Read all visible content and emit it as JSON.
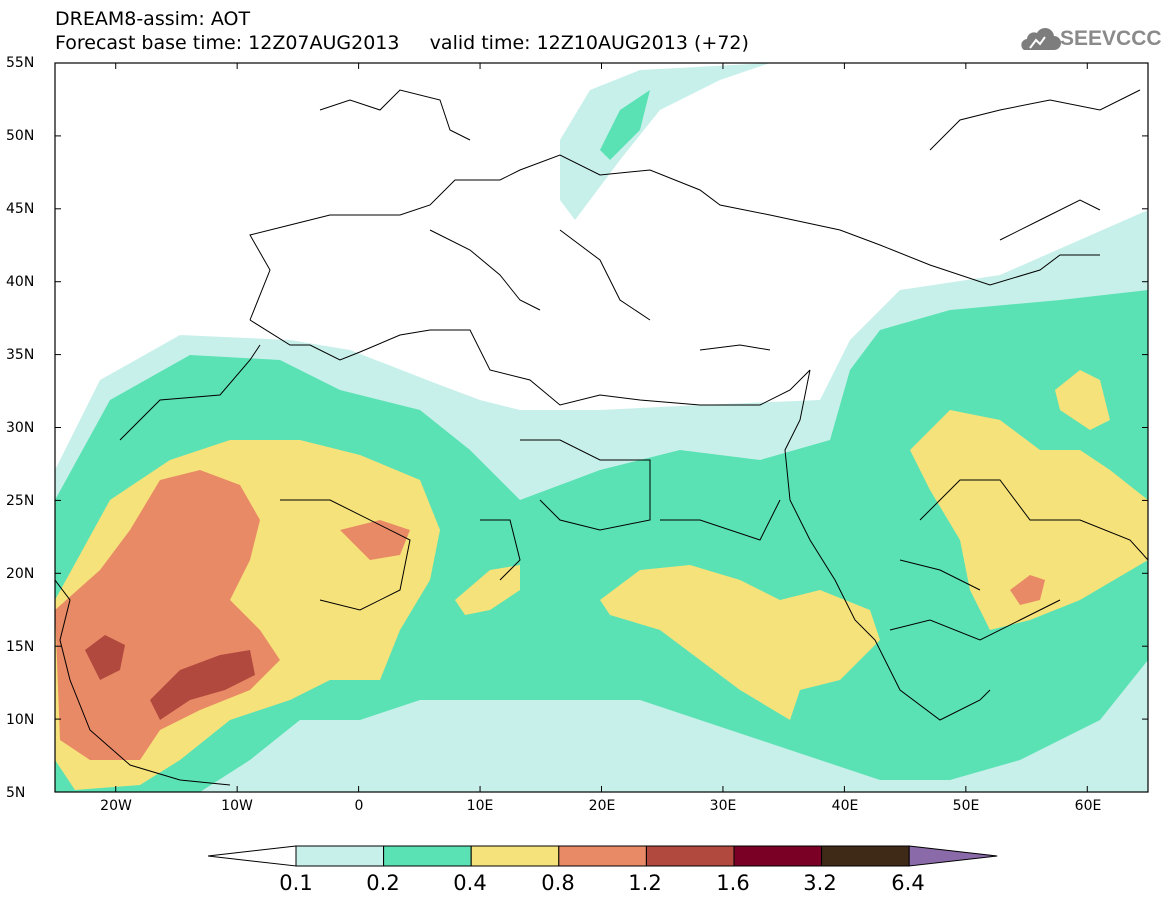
{
  "header": {
    "line1": "DREAM8-assim: AOT",
    "line2": "Forecast base time: 12Z07AUG2013     valid time: 12Z10AUG2013 (+72)"
  },
  "logo": {
    "text": "SEEVCCC",
    "icon": "cloud-logo-icon"
  },
  "map": {
    "lat_labels": [
      "55N",
      "50N",
      "45N",
      "40N",
      "35N",
      "30N",
      "25N",
      "20N",
      "15N",
      "10N",
      "5N"
    ],
    "lon_labels": [
      "20W",
      "10W",
      "0",
      "10E",
      "20E",
      "30E",
      "40E",
      "50E",
      "60E"
    ],
    "lat_range": [
      5,
      55
    ],
    "lon_range": [
      -25,
      65
    ]
  },
  "colorbar": {
    "labels": [
      "0.1",
      "0.2",
      "0.4",
      "0.8",
      "1.2",
      "1.6",
      "3.2",
      "6.4"
    ],
    "colors": [
      "#ffffff",
      "#c8f0ea",
      "#5ae2b4",
      "#f6e27a",
      "#e98a67",
      "#b1493e",
      "#7a0125",
      "#3f2a18",
      "#8a6aa8"
    ]
  }
}
